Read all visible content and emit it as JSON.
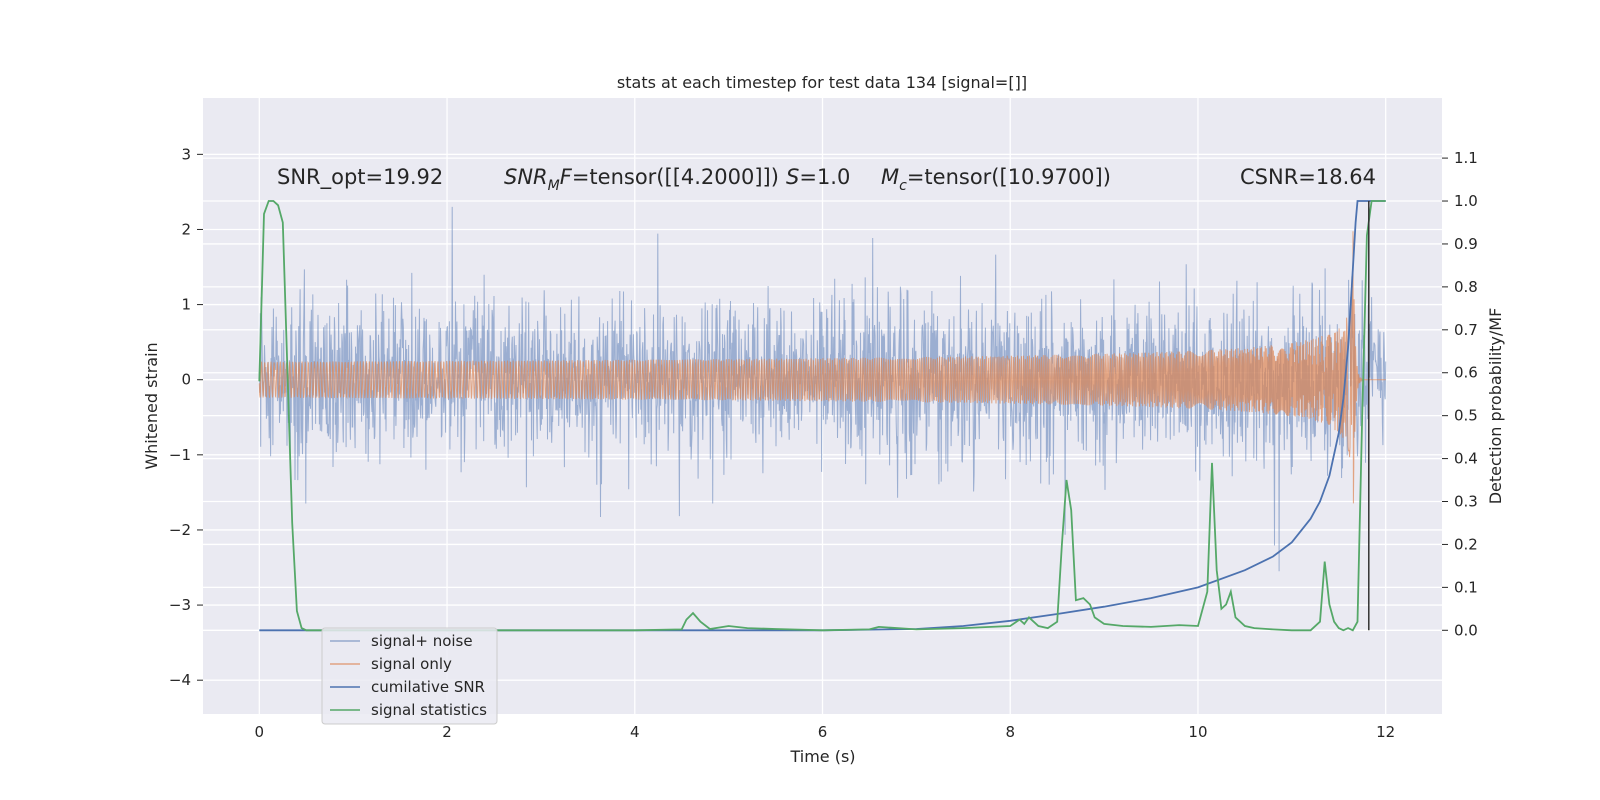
{
  "chart_data": {
    "type": "line",
    "title": "stats at each timestep for test data 134 [signal=[]]",
    "xlabel": "Time (s)",
    "ylabel": "Whitened strain",
    "y2label": "Detection probability/MF",
    "xlim": [
      -0.6,
      12.6
    ],
    "ylim": [
      -4.45,
      3.75
    ],
    "y2lim": [
      -0.195,
      1.24
    ],
    "xticks": [
      0,
      2,
      4,
      6,
      8,
      10,
      12
    ],
    "yticks": [
      3,
      2,
      1,
      0,
      -1,
      -2,
      -3,
      -4
    ],
    "ytick_labels": [
      "3",
      "2",
      "1",
      "0",
      "−1",
      "−2",
      "−3",
      "−4"
    ],
    "y2ticks": [
      1.1,
      1.0,
      0.9,
      0.8,
      0.7,
      0.6,
      0.5,
      0.4,
      0.3,
      0.2,
      0.1,
      0.0
    ],
    "y2tick_labels": [
      "1.1",
      "1.0",
      "0.9",
      "0.8",
      "0.7",
      "0.6",
      "0.5",
      "0.4",
      "0.3",
      "0.2",
      "0.1",
      "0.0"
    ],
    "grid": true,
    "legend_position": "lower-left",
    "annotations": {
      "snr_opt": "SNR_opt=19.92",
      "snr_mf_sym": "SNR",
      "snr_mf_sub": "M",
      "snr_mf_f": "F",
      "snr_mf_val": "=tensor([[4.2000]])",
      "s_sym": "S",
      "s_val": "=1.0",
      "mc_sym": "M",
      "mc_sub": "c",
      "mc_val": "=tensor([10.9700])",
      "csnr": "CSNR=18.64"
    },
    "series": [
      {
        "name": "signal+ noise",
        "axis": "left",
        "color": "#4c72b0",
        "style": "noise",
        "duration": 12,
        "sigma": 0.75,
        "seed": 134
      },
      {
        "name": "signal only",
        "axis": "left",
        "color": "#dd8452",
        "style": "chirp",
        "t_merger": 11.65,
        "peak_amplitude": 3.2,
        "end": 12
      },
      {
        "name": "cumilative SNR",
        "axis": "right",
        "color": "#4c72b0",
        "x": [
          0,
          6,
          7,
          7.5,
          8,
          8.5,
          9,
          9.5,
          10,
          10.5,
          10.8,
          11.0,
          11.2,
          11.3,
          11.4,
          11.5,
          11.55,
          11.6,
          11.65,
          11.68,
          11.7,
          11.8,
          11.9,
          12
        ],
        "y": [
          0,
          0,
          0.003,
          0.01,
          0.022,
          0.038,
          0.055,
          0.075,
          0.1,
          0.14,
          0.172,
          0.205,
          0.26,
          0.3,
          0.36,
          0.46,
          0.54,
          0.66,
          0.84,
          0.95,
          1.0,
          1.0,
          1.0,
          1.0
        ]
      },
      {
        "name": "signal statistics",
        "axis": "right",
        "color": "#55a868",
        "x": [
          0,
          0.05,
          0.1,
          0.15,
          0.2,
          0.25,
          0.3,
          0.35,
          0.4,
          0.45,
          0.5,
          1.0,
          2.0,
          3.0,
          4.0,
          4.5,
          4.55,
          4.62,
          4.7,
          4.8,
          5.0,
          5.2,
          5.5,
          6.0,
          6.5,
          6.6,
          7.0,
          7.5,
          8.0,
          8.1,
          8.15,
          8.2,
          8.3,
          8.4,
          8.5,
          8.55,
          8.6,
          8.65,
          8.7,
          8.78,
          8.85,
          8.9,
          9.0,
          9.2,
          9.5,
          9.8,
          10.0,
          10.1,
          10.15,
          10.2,
          10.25,
          10.3,
          10.35,
          10.4,
          10.45,
          10.5,
          10.6,
          10.8,
          11.0,
          11.2,
          11.3,
          11.35,
          11.4,
          11.45,
          11.5,
          11.55,
          11.6,
          11.65,
          11.7,
          11.75,
          11.8,
          11.85,
          11.9,
          12
        ],
        "y": [
          0.58,
          0.97,
          1.0,
          1.0,
          0.99,
          0.95,
          0.6,
          0.25,
          0.045,
          0.005,
          0.0,
          0.0,
          0.0,
          0.0,
          0.0,
          0.002,
          0.025,
          0.04,
          0.02,
          0.003,
          0.01,
          0.005,
          0.003,
          0.0,
          0.002,
          0.008,
          0.002,
          0.005,
          0.01,
          0.025,
          0.015,
          0.03,
          0.01,
          0.005,
          0.02,
          0.2,
          0.35,
          0.28,
          0.07,
          0.075,
          0.06,
          0.03,
          0.015,
          0.01,
          0.008,
          0.012,
          0.01,
          0.09,
          0.39,
          0.14,
          0.05,
          0.06,
          0.09,
          0.03,
          0.02,
          0.01,
          0.005,
          0.002,
          0.0,
          0.0,
          0.02,
          0.16,
          0.06,
          0.02,
          0.005,
          0.0,
          0.005,
          0.0,
          0.02,
          0.5,
          0.92,
          1.0,
          1.0,
          1.0
        ]
      }
    ]
  }
}
